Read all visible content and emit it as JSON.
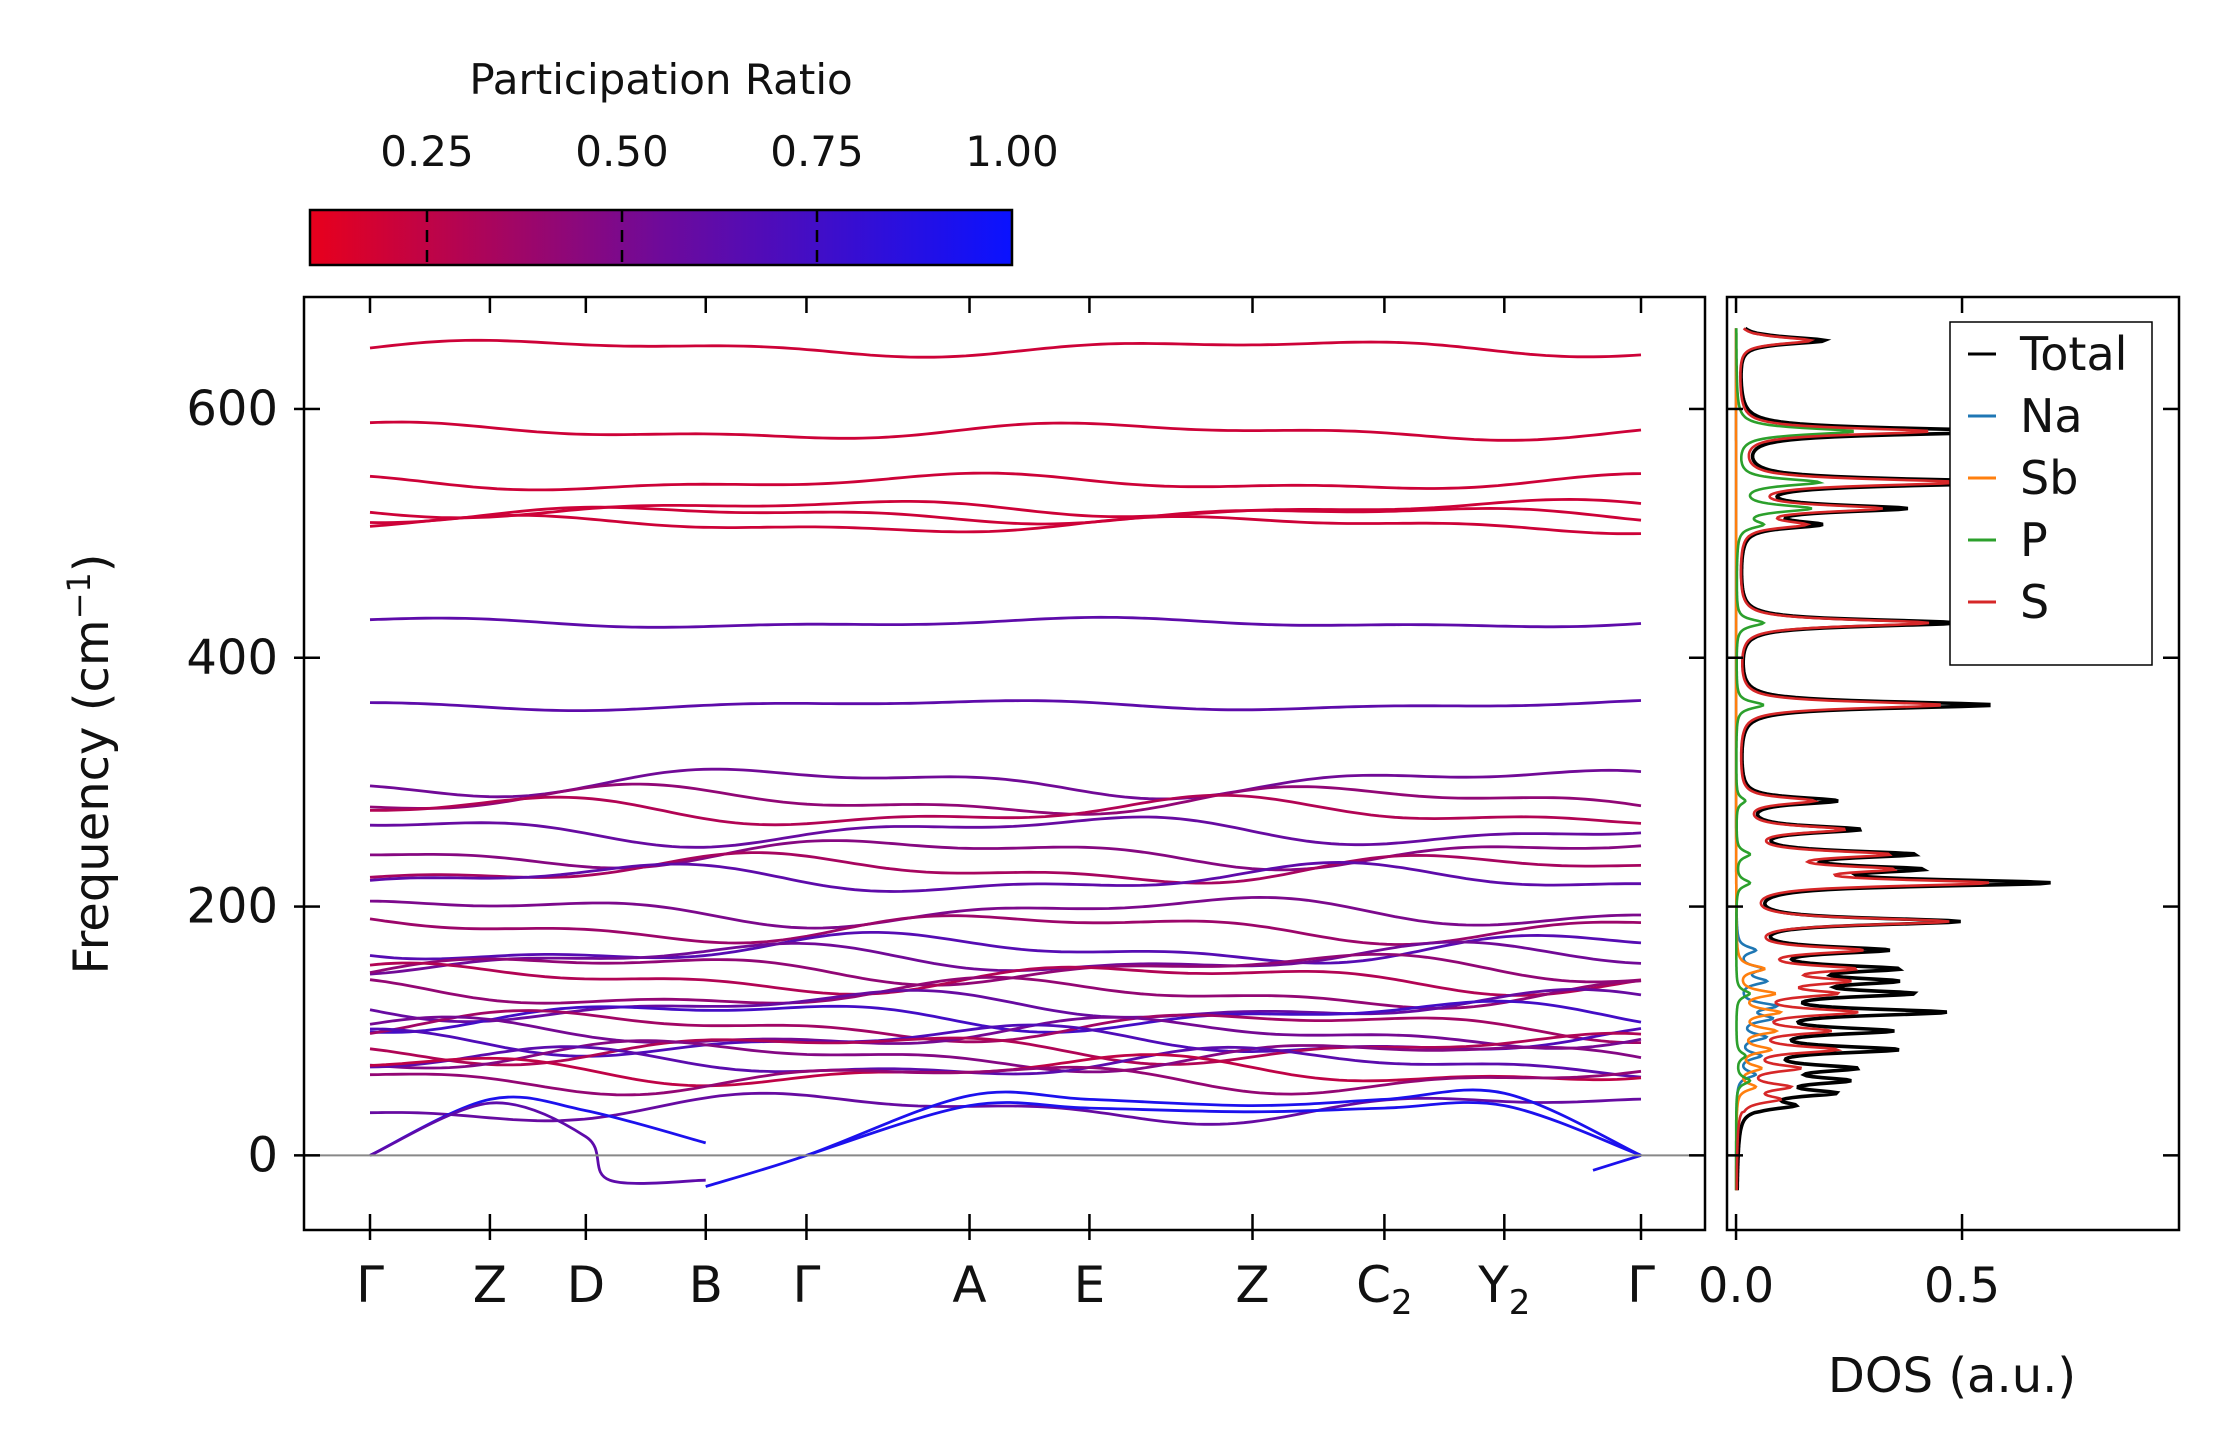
{
  "chart_data": [
    {
      "type": "line",
      "title": "",
      "xlabel": "",
      "ylabel": "Frequency (cm",
      "ylabel_sup": "−1",
      "ylabel_close": ")",
      "ylim": [
        -60,
        690
      ],
      "yticks": [
        0,
        200,
        400,
        600
      ],
      "ytick_labels": [
        "0",
        "200",
        "400",
        "600"
      ],
      "kpath": [
        {
          "label": "Γ",
          "sub": "",
          "x": 0
        },
        {
          "label": "Z",
          "sub": "",
          "x": 0.5
        },
        {
          "label": "D",
          "sub": "",
          "x": 0.9
        },
        {
          "label": "B",
          "sub": "",
          "x": 1.4
        },
        {
          "label": "Γ",
          "sub": "",
          "x": 1.82
        },
        {
          "label": "A",
          "sub": "",
          "x": 2.5
        },
        {
          "label": "E",
          "sub": "",
          "x": 3.0
        },
        {
          "label": "Z",
          "sub": "",
          "x": 3.68
        },
        {
          "label": "C",
          "sub": "2",
          "x": 4.23
        },
        {
          "label": "Y",
          "sub": "2",
          "x": 4.73
        },
        {
          "label": "Γ",
          "sub": "",
          "x": 5.3
        }
      ],
      "optical_bands": [
        649,
        582,
        541,
        520,
        515,
        507,
        428,
        362,
        300,
        285,
        276,
        261,
        243,
        230,
        222,
        196,
        183,
        166,
        158,
        150,
        142,
        130,
        120,
        112,
        104,
        98,
        92,
        86,
        80,
        74,
        68,
        62,
        38
      ],
      "acoustic_bands": [
        {
          "name": "acoustic-1",
          "points": [
            [
              0,
              0
            ],
            [
              0.5,
              45
            ],
            [
              0.9,
              36
            ],
            [
              1.4,
              10
            ]
          ]
        },
        {
          "name": "acoustic-2",
          "points": [
            [
              0,
              0
            ],
            [
              0.5,
              42
            ],
            [
              0.9,
              15
            ],
            [
              1.0,
              -20
            ],
            [
              1.4,
              -20
            ]
          ]
        },
        {
          "name": "acoustic-3",
          "points": [
            [
              1.4,
              -25
            ],
            [
              1.82,
              0
            ],
            [
              2.5,
              48
            ],
            [
              3.0,
              45
            ],
            [
              3.68,
              40
            ],
            [
              4.23,
              45
            ],
            [
              4.73,
              50
            ],
            [
              5.3,
              0
            ]
          ]
        },
        {
          "name": "acoustic-4",
          "points": [
            [
              1.82,
              0
            ],
            [
              2.5,
              40
            ],
            [
              3.0,
              38
            ],
            [
              3.68,
              35
            ],
            [
              4.23,
              38
            ],
            [
              4.73,
              40
            ],
            [
              5.3,
              0
            ]
          ]
        },
        {
          "name": "acoustic-5",
          "points": [
            [
              5.1,
              -12
            ],
            [
              5.3,
              0
            ]
          ]
        }
      ],
      "colorbar": {
        "title": "Participation Ratio",
        "ticks": [
          0.25,
          0.5,
          0.75,
          1.0
        ],
        "tick_labels": [
          "0.25",
          "0.50",
          "0.75",
          "1.00"
        ],
        "range": [
          0.1,
          1.0
        ],
        "color_low": "#e8001c",
        "color_mid": "#6e0a9a",
        "color_high": "#0a12ff"
      }
    },
    {
      "type": "line",
      "title": "",
      "xlabel": "DOS (a.u.)",
      "ylabel": "",
      "xlim": [
        -0.02,
        0.98
      ],
      "xticks": [
        0.0,
        0.5
      ],
      "xtick_labels": [
        "0.0",
        "0.5"
      ],
      "legend": {
        "placement": "top-right",
        "entries": [
          {
            "label": "Total",
            "color": "#000000"
          },
          {
            "label": "Na",
            "color": "#1f77b4"
          },
          {
            "label": "Sb",
            "color": "#ff7f0e"
          },
          {
            "label": "P",
            "color": "#2ca02c"
          },
          {
            "label": "S",
            "color": "#d62728"
          }
        ]
      },
      "series": [
        {
          "name": "Total",
          "color": "#000000",
          "peaks": [
            [
              655,
              0.19
            ],
            [
              582,
              0.6
            ],
            [
              541,
              0.62
            ],
            [
              520,
              0.35
            ],
            [
              507,
              0.16
            ],
            [
              428,
              0.48
            ],
            [
              362,
              0.56
            ],
            [
              285,
              0.21
            ],
            [
              262,
              0.25
            ],
            [
              242,
              0.35
            ],
            [
              230,
              0.33
            ],
            [
              219,
              0.65
            ],
            [
              188,
              0.47
            ],
            [
              165,
              0.3
            ],
            [
              150,
              0.3
            ],
            [
              140,
              0.28
            ],
            [
              130,
              0.33
            ],
            [
              115,
              0.42
            ],
            [
              100,
              0.3
            ],
            [
              85,
              0.32
            ],
            [
              70,
              0.22
            ],
            [
              60,
              0.2
            ],
            [
              50,
              0.18
            ],
            [
              40,
              0.1
            ]
          ]
        },
        {
          "name": "S",
          "color": "#d62728",
          "peaks": [
            [
              655,
              0.16
            ],
            [
              582,
              0.42
            ],
            [
              541,
              0.48
            ],
            [
              520,
              0.3
            ],
            [
              507,
              0.13
            ],
            [
              428,
              0.42
            ],
            [
              362,
              0.45
            ],
            [
              285,
              0.16
            ],
            [
              262,
              0.22
            ],
            [
              242,
              0.3
            ],
            [
              230,
              0.28
            ],
            [
              219,
              0.52
            ],
            [
              188,
              0.45
            ],
            [
              165,
              0.25
            ],
            [
              150,
              0.22
            ],
            [
              140,
              0.2
            ],
            [
              130,
              0.18
            ],
            [
              115,
              0.24
            ],
            [
              100,
              0.18
            ],
            [
              85,
              0.2
            ],
            [
              70,
              0.12
            ],
            [
              55,
              0.1
            ],
            [
              45,
              0.08
            ]
          ]
        },
        {
          "name": "P",
          "color": "#2ca02c",
          "peaks": [
            [
              582,
              0.26
            ],
            [
              541,
              0.18
            ],
            [
              520,
              0.16
            ],
            [
              507,
              0.05
            ],
            [
              428,
              0.06
            ],
            [
              362,
              0.06
            ],
            [
              285,
              0.02
            ],
            [
              242,
              0.03
            ],
            [
              219,
              0.03
            ],
            [
              130,
              0.03
            ],
            [
              80,
              0.02
            ],
            [
              60,
              0.03
            ]
          ]
        },
        {
          "name": "Sb",
          "color": "#ff7f0e",
          "peaks": [
            [
              150,
              0.06
            ],
            [
              130,
              0.08
            ],
            [
              115,
              0.09
            ],
            [
              100,
              0.08
            ],
            [
              85,
              0.07
            ],
            [
              70,
              0.05
            ],
            [
              55,
              0.04
            ]
          ]
        },
        {
          "name": "Na",
          "color": "#1f77b4",
          "peaks": [
            [
              165,
              0.04
            ],
            [
              150,
              0.05
            ],
            [
              140,
              0.06
            ],
            [
              120,
              0.08
            ],
            [
              110,
              0.07
            ],
            [
              95,
              0.06
            ],
            [
              80,
              0.05
            ],
            [
              65,
              0.04
            ]
          ]
        }
      ]
    }
  ]
}
